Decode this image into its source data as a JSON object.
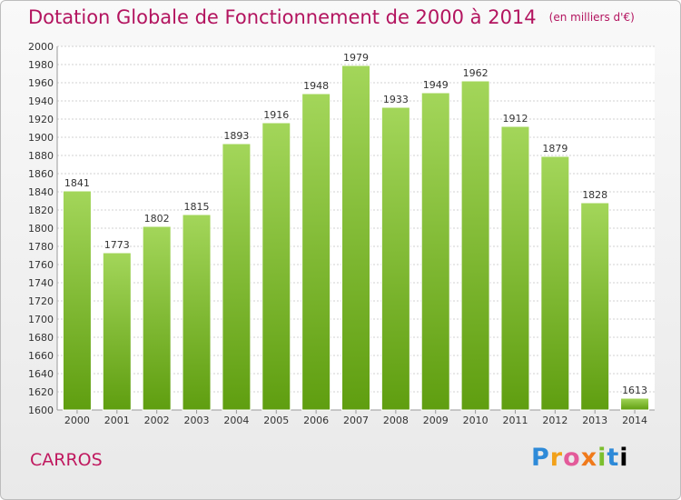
{
  "header": {
    "title": "Dotation Globale de Fonctionnement de 2000 à 2014",
    "unit": "(en milliers d'€)"
  },
  "footer": {
    "town": "CARROS",
    "logo": "Proxiti"
  },
  "colors": {
    "title": "#b3145f",
    "bar_top": "#a3d65a",
    "bar_bottom": "#5f9e10",
    "grid": "#d2d2d2",
    "text": "#333333"
  },
  "chart_data": {
    "type": "bar",
    "categories": [
      "2000",
      "2001",
      "2002",
      "2003",
      "2004",
      "2005",
      "2006",
      "2007",
      "2008",
      "2009",
      "2010",
      "2011",
      "2012",
      "2013",
      "2014"
    ],
    "values": [
      1841,
      1773,
      1802,
      1815,
      1893,
      1916,
      1948,
      1979,
      1933,
      1949,
      1962,
      1912,
      1879,
      1828,
      1613
    ],
    "ylim": [
      1600,
      2000
    ],
    "ytick_step": 20,
    "grid": true,
    "data_labels": true
  }
}
